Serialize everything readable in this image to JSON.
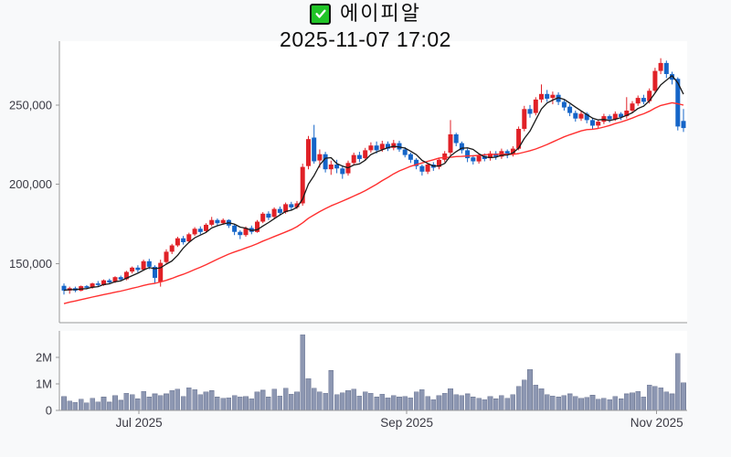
{
  "header": {
    "stock_name": "에이피알",
    "timestamp": "2025-11-07 17:02",
    "checkbox_checked": true
  },
  "chart_data": {
    "type": "candlestick",
    "title": "에이피알",
    "subtitle": "2025-11-07 17:02",
    "legend_position": "none",
    "grid": false,
    "panels": [
      "price",
      "volume"
    ],
    "price_axis": {
      "ylim": [
        112800,
        290300
      ],
      "ticks": [
        {
          "label": "150,000",
          "value": 150000
        },
        {
          "label": "200,000",
          "value": 200000
        },
        {
          "label": "250,000",
          "value": 250000
        }
      ]
    },
    "volume_axis": {
      "ylim": [
        0,
        3000000
      ],
      "ticks": [
        {
          "label": "0",
          "value": 0
        },
        {
          "label": "1M",
          "value": 1000000
        },
        {
          "label": "2M",
          "value": 2000000
        }
      ]
    },
    "x_axis": {
      "ticks": [
        {
          "label": "Jul 2025",
          "index": 13.2
        },
        {
          "label": "Sep 2025",
          "index": 60.3
        },
        {
          "label": "Nov 2025",
          "index": 104.3
        }
      ]
    },
    "ma_short_period": 5,
    "ma_long_period": 25,
    "ma_long_seed": [
      112000,
      113500,
      114500,
      115500,
      117000,
      118000,
      119500,
      120500,
      121500,
      122500,
      123500,
      124500,
      125500,
      126500,
      127500,
      128500,
      129500,
      130500,
      131500,
      132000,
      132500,
      133000,
      133500,
      134000
    ],
    "candle_columns": [
      "open",
      "high",
      "low",
      "close",
      "volume"
    ],
    "candles": [
      [
        136000,
        137500,
        130500,
        133000,
        520000
      ],
      [
        133000,
        135500,
        131000,
        134500,
        350000
      ],
      [
        134500,
        135500,
        132000,
        133000,
        300000
      ],
      [
        133000,
        136200,
        132500,
        135800,
        420000
      ],
      [
        135800,
        136500,
        133800,
        134800,
        280000
      ],
      [
        135000,
        138000,
        134200,
        137500,
        450000
      ],
      [
        137500,
        139000,
        135500,
        136500,
        320000
      ],
      [
        136500,
        140000,
        136000,
        139500,
        500000
      ],
      [
        139500,
        140500,
        137200,
        138200,
        310000
      ],
      [
        138500,
        142000,
        137800,
        141500,
        560000
      ],
      [
        141500,
        142500,
        139000,
        140000,
        380000
      ],
      [
        140200,
        145500,
        139500,
        144800,
        650000
      ],
      [
        145000,
        148200,
        143800,
        147500,
        600000
      ],
      [
        147500,
        149000,
        144500,
        146000,
        430000
      ],
      [
        146200,
        152500,
        145500,
        151500,
        720000
      ],
      [
        151500,
        153000,
        146500,
        148000,
        500000
      ],
      [
        148000,
        149000,
        137500,
        141000,
        620000
      ],
      [
        138500,
        152500,
        135500,
        150500,
        560000
      ],
      [
        151000,
        159000,
        150000,
        157500,
        620000
      ],
      [
        157500,
        162500,
        156000,
        161500,
        750000
      ],
      [
        161500,
        167000,
        160500,
        166000,
        800000
      ],
      [
        166000,
        167500,
        162000,
        163500,
        520000
      ],
      [
        164000,
        169500,
        163000,
        168500,
        850000
      ],
      [
        168500,
        173000,
        167500,
        172000,
        780000
      ],
      [
        172000,
        173500,
        168500,
        170000,
        600000
      ],
      [
        170500,
        175500,
        169500,
        174500,
        700000
      ],
      [
        174500,
        179500,
        173500,
        177500,
        740000
      ],
      [
        177500,
        178500,
        174000,
        175500,
        500000
      ],
      [
        175500,
        178500,
        174500,
        177500,
        460000
      ],
      [
        177500,
        178000,
        172500,
        174000,
        480000
      ],
      [
        174000,
        175000,
        168000,
        170000,
        560000
      ],
      [
        170000,
        171000,
        165500,
        168000,
        510000
      ],
      [
        168000,
        173500,
        167000,
        172500,
        530000
      ],
      [
        172500,
        174000,
        168500,
        170000,
        440000
      ],
      [
        170000,
        177500,
        169500,
        176500,
        700000
      ],
      [
        176500,
        182500,
        175500,
        181500,
        760000
      ],
      [
        181500,
        183000,
        177500,
        179000,
        500000
      ],
      [
        179500,
        185500,
        178500,
        184500,
        800000
      ],
      [
        184500,
        186000,
        180500,
        182000,
        550000
      ],
      [
        182500,
        188500,
        181500,
        187500,
        840000
      ],
      [
        187500,
        189000,
        184000,
        185500,
        610000
      ],
      [
        185500,
        189500,
        184500,
        188000,
        700000
      ],
      [
        188000,
        213000,
        186500,
        211000,
        2850000
      ],
      [
        211500,
        230500,
        209500,
        228500,
        1200000
      ],
      [
        229500,
        237500,
        213000,
        214500,
        840000
      ],
      [
        215000,
        222000,
        210500,
        219000,
        700000
      ],
      [
        219000,
        220500,
        207500,
        209500,
        640000
      ],
      [
        209500,
        215000,
        206000,
        212500,
        1500000
      ],
      [
        212500,
        215500,
        207000,
        210000,
        600000
      ],
      [
        210000,
        212000,
        203500,
        206500,
        660000
      ],
      [
        207000,
        215000,
        205500,
        213500,
        750000
      ],
      [
        213500,
        220000,
        212000,
        218500,
        800000
      ],
      [
        218500,
        220500,
        214000,
        216000,
        540000
      ],
      [
        216500,
        223000,
        215000,
        221500,
        700000
      ],
      [
        221500,
        226500,
        220000,
        224500,
        640000
      ],
      [
        224500,
        227000,
        219500,
        221500,
        500000
      ],
      [
        222000,
        227500,
        220500,
        225500,
        610000
      ],
      [
        225500,
        227000,
        221000,
        222500,
        480000
      ],
      [
        223000,
        228000,
        221500,
        226000,
        560000
      ],
      [
        226000,
        227500,
        220500,
        222000,
        500000
      ],
      [
        222000,
        223500,
        217000,
        218500,
        520000
      ],
      [
        219000,
        220000,
        213500,
        215500,
        480000
      ],
      [
        215500,
        216500,
        209500,
        211500,
        700000
      ],
      [
        211500,
        212500,
        205500,
        208000,
        780000
      ],
      [
        208000,
        213500,
        206500,
        212500,
        520000
      ],
      [
        212500,
        214000,
        208500,
        210500,
        400000
      ],
      [
        211000,
        216500,
        209500,
        215500,
        560000
      ],
      [
        215500,
        221000,
        214000,
        219500,
        650000
      ],
      [
        220000,
        240500,
        218500,
        231500,
        820000
      ],
      [
        231500,
        232500,
        224000,
        226000,
        600000
      ],
      [
        226000,
        227000,
        219500,
        221500,
        560000
      ],
      [
        221500,
        222500,
        214000,
        216500,
        620000
      ],
      [
        217000,
        218500,
        212500,
        214500,
        500000
      ],
      [
        214500,
        219000,
        213000,
        218000,
        460000
      ],
      [
        218000,
        219500,
        214500,
        216000,
        400000
      ],
      [
        216500,
        221000,
        215000,
        219500,
        520000
      ],
      [
        219500,
        221000,
        215500,
        217500,
        430000
      ],
      [
        217500,
        222500,
        216000,
        221000,
        560000
      ],
      [
        221000,
        222000,
        216500,
        218500,
        450000
      ],
      [
        219000,
        224000,
        217500,
        222500,
        600000
      ],
      [
        222500,
        236500,
        221500,
        235000,
        900000
      ],
      [
        235000,
        249500,
        233500,
        247500,
        1150000
      ],
      [
        247500,
        250000,
        242000,
        244500,
        1550000
      ],
      [
        245000,
        255000,
        243500,
        253500,
        950000
      ],
      [
        253500,
        263000,
        251500,
        257000,
        820000
      ],
      [
        257000,
        259500,
        252000,
        254000,
        600000
      ],
      [
        254500,
        258500,
        250500,
        256500,
        550000
      ],
      [
        256500,
        258000,
        250000,
        252000,
        500000
      ],
      [
        252000,
        253500,
        246500,
        248500,
        560000
      ],
      [
        249000,
        250500,
        243000,
        245000,
        620000
      ],
      [
        245000,
        246500,
        239500,
        241500,
        520000
      ],
      [
        241500,
        246000,
        240000,
        244500,
        460000
      ],
      [
        244500,
        245500,
        238500,
        240500,
        490000
      ],
      [
        240500,
        242000,
        234500,
        237000,
        570000
      ],
      [
        237000,
        241000,
        235500,
        239500,
        420000
      ],
      [
        239500,
        244500,
        238000,
        243000,
        460000
      ],
      [
        243000,
        244000,
        239000,
        241000,
        400000
      ],
      [
        241000,
        246000,
        240000,
        244500,
        520000
      ],
      [
        244500,
        245500,
        240500,
        242500,
        430000
      ],
      [
        243000,
        255000,
        241500,
        246500,
        620000
      ],
      [
        246500,
        252500,
        245000,
        251000,
        660000
      ],
      [
        251000,
        256000,
        249500,
        254500,
        720000
      ],
      [
        254500,
        256500,
        250500,
        252000,
        510000
      ],
      [
        252500,
        260500,
        251000,
        259000,
        950000
      ],
      [
        259000,
        273500,
        257500,
        271500,
        900000
      ],
      [
        271500,
        279500,
        269500,
        276500,
        860000
      ],
      [
        276500,
        278000,
        267000,
        269500,
        700000
      ],
      [
        269500,
        271000,
        263000,
        266000,
        620000
      ],
      [
        266500,
        267500,
        234000,
        236500,
        2150000
      ],
      [
        240000,
        247500,
        233000,
        235500,
        1050000
      ]
    ],
    "colors": {
      "up": "#e02127",
      "down": "#1565c8",
      "ma_short": "#1a1a1a",
      "ma_long": "#ff3030",
      "volume_fill": "#8d97b2",
      "volume_border": "#78829c",
      "background": "#f8f9fa",
      "plot_bg": "#ffffff",
      "spine": "#999999",
      "tick_text": "#3a3a44",
      "title_text": "#0d0d0d",
      "checkbox_green": "#20c426"
    }
  }
}
